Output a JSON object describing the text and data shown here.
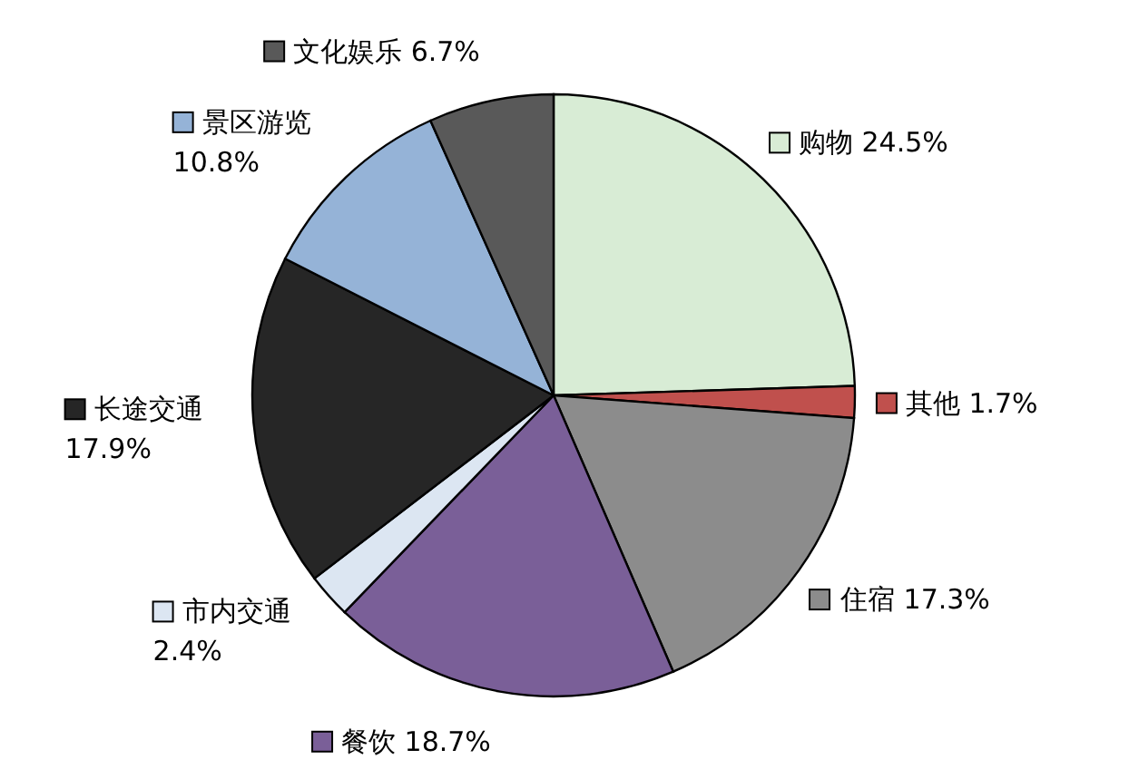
{
  "chart_data": {
    "type": "pie",
    "legend": "bottom left",
    "categories": [
      "购物",
      "其他",
      "住宿",
      "餐饮",
      "市内交通",
      "长途交通",
      "景区游览",
      "文化娱乐"
    ],
    "values": [
      24.5,
      1.7,
      17.3,
      18.7,
      2.4,
      17.9,
      10.8,
      6.7
    ],
    "value_labels": [
      "24.5%",
      "1.7%",
      "17.3%",
      "18.7%",
      "2.4%",
      "17.9%",
      "10.8%",
      "6.7%"
    ],
    "colors": [
      "#d8ecd5",
      "#c0504d",
      "#8c8c8c",
      "#7a5f98",
      "#dce6f2",
      "#262626",
      "#95b3d7",
      "#595959"
    ]
  }
}
